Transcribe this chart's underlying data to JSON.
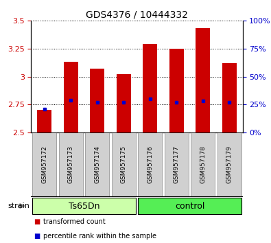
{
  "title": "GDS4376 / 10444332",
  "samples": [
    "GSM957172",
    "GSM957173",
    "GSM957174",
    "GSM957175",
    "GSM957176",
    "GSM957177",
    "GSM957178",
    "GSM957179"
  ],
  "red_values": [
    2.7,
    3.13,
    3.07,
    3.02,
    3.29,
    3.25,
    3.43,
    3.12
  ],
  "blue_values": [
    2.71,
    2.79,
    2.77,
    2.77,
    2.8,
    2.77,
    2.78,
    2.77
  ],
  "ymin": 2.5,
  "ymax": 3.5,
  "y_ticks_left": [
    2.5,
    2.75,
    3.0,
    3.25,
    3.5
  ],
  "y_ticks_right_pct": [
    0,
    25,
    50,
    75,
    100
  ],
  "groups": [
    {
      "label": "Ts65Dn",
      "start": 0,
      "end": 4,
      "color": "#ccffaa"
    },
    {
      "label": "control",
      "start": 4,
      "end": 8,
      "color": "#55ee55"
    }
  ],
  "group_row_label": "strain",
  "bar_color": "#cc0000",
  "blue_color": "#0000cc",
  "tick_color_left": "#cc0000",
  "tick_color_right": "#0000cc",
  "bar_width": 0.55,
  "base_value": 2.5,
  "legend_red": "transformed count",
  "legend_blue": "percentile rank within the sample",
  "sample_box_color": "#d0d0d0",
  "sample_box_edge": "#888888",
  "title_fontsize": 10,
  "tick_fontsize": 8,
  "sample_fontsize": 6.5,
  "group_fontsize": 9
}
